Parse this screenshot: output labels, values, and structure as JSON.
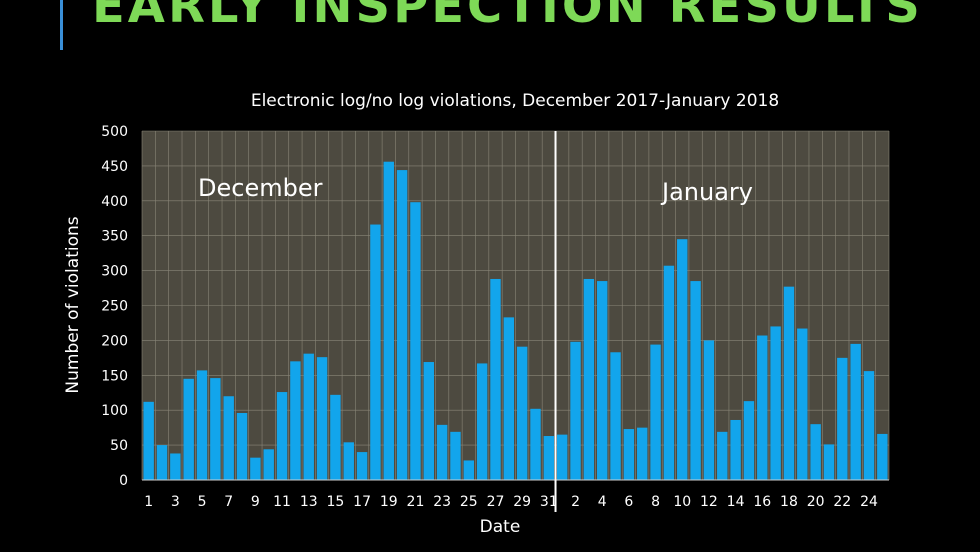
{
  "slide": {
    "title": "EARLY INSPECTION RESULTS",
    "title_color": "#7ed957",
    "accent_bar_color": "#3a8fd8"
  },
  "chart_data": {
    "type": "bar",
    "title": "Electronic log/no log violations, December 2017-January 2018",
    "xlabel": "Date",
    "ylabel": "Number of violations",
    "ylim": [
      0,
      500
    ],
    "yticks": [
      0,
      50,
      100,
      150,
      200,
      250,
      300,
      350,
      400,
      450,
      500
    ],
    "grid": true,
    "bar_color": "#12a5ec",
    "plot_background": "#4d4a40",
    "grid_color": "#8a8678",
    "divider_color": "#ffffff",
    "categories": [
      "1",
      "2",
      "3",
      "4",
      "5",
      "6",
      "7",
      "8",
      "9",
      "10",
      "11",
      "12",
      "13",
      "14",
      "15",
      "16",
      "17",
      "18",
      "19",
      "20",
      "21",
      "22",
      "23",
      "24",
      "25",
      "26",
      "27",
      "28",
      "29",
      "30",
      "31",
      "1",
      "2",
      "3",
      "4",
      "5",
      "6",
      "7",
      "8",
      "9",
      "10",
      "11",
      "12",
      "13",
      "14",
      "15",
      "16",
      "17",
      "18",
      "19",
      "20",
      "21",
      "22",
      "23",
      "24",
      "25"
    ],
    "tick_labels": [
      "1",
      "",
      "3",
      "",
      "5",
      "",
      "7",
      "",
      "9",
      "",
      "11",
      "",
      "13",
      "",
      "15",
      "",
      "17",
      "",
      "19",
      "",
      "21",
      "",
      "23",
      "",
      "25",
      "",
      "27",
      "",
      "29",
      "",
      "31",
      "",
      "2",
      "",
      "4",
      "",
      "6",
      "",
      "8",
      "",
      "10",
      "",
      "12",
      "",
      "14",
      "",
      "16",
      "",
      "18",
      "",
      "20",
      "",
      "22",
      "",
      "24",
      ""
    ],
    "values": [
      112,
      50,
      38,
      145,
      157,
      146,
      120,
      96,
      32,
      44,
      126,
      170,
      181,
      176,
      122,
      54,
      40,
      366,
      456,
      444,
      398,
      169,
      79,
      69,
      28,
      167,
      288,
      233,
      191,
      102,
      63,
      65,
      198,
      288,
      285,
      183,
      73,
      75,
      194,
      307,
      345,
      285,
      200,
      69,
      86,
      113,
      207,
      220,
      277,
      217,
      80,
      51,
      175,
      195,
      156,
      66
    ],
    "split_after_index": 30,
    "annotations": [
      {
        "text": "December",
        "series_index_anchor": 4
      },
      {
        "text": "January",
        "series_index_anchor": 40
      }
    ]
  }
}
